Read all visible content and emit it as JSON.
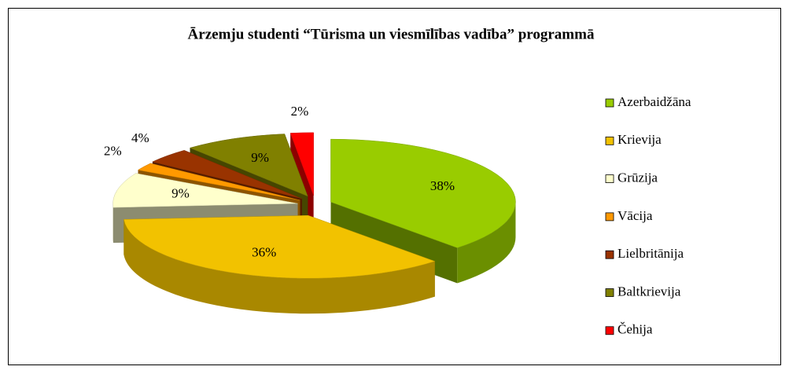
{
  "chart_data": {
    "type": "pie",
    "title": "Ārzemju studenti “Tūrisma un viesmīlības vadība” programmā",
    "categories": [
      "Azerbaidžāna",
      "Krievija",
      "Grūzija",
      "Vācija",
      "Lielbritānija",
      "Baltkrievija",
      "Čehija"
    ],
    "values": [
      38,
      36,
      9,
      2,
      4,
      9,
      2
    ],
    "value_labels": [
      "38%",
      "36%",
      "9%",
      "2%",
      "4%",
      "9%",
      "2%"
    ],
    "colors": [
      "#99cc00",
      "#f2c200",
      "#ffffcc",
      "#ff9900",
      "#993300",
      "#808000",
      "#ff0000"
    ],
    "legend": "right"
  }
}
